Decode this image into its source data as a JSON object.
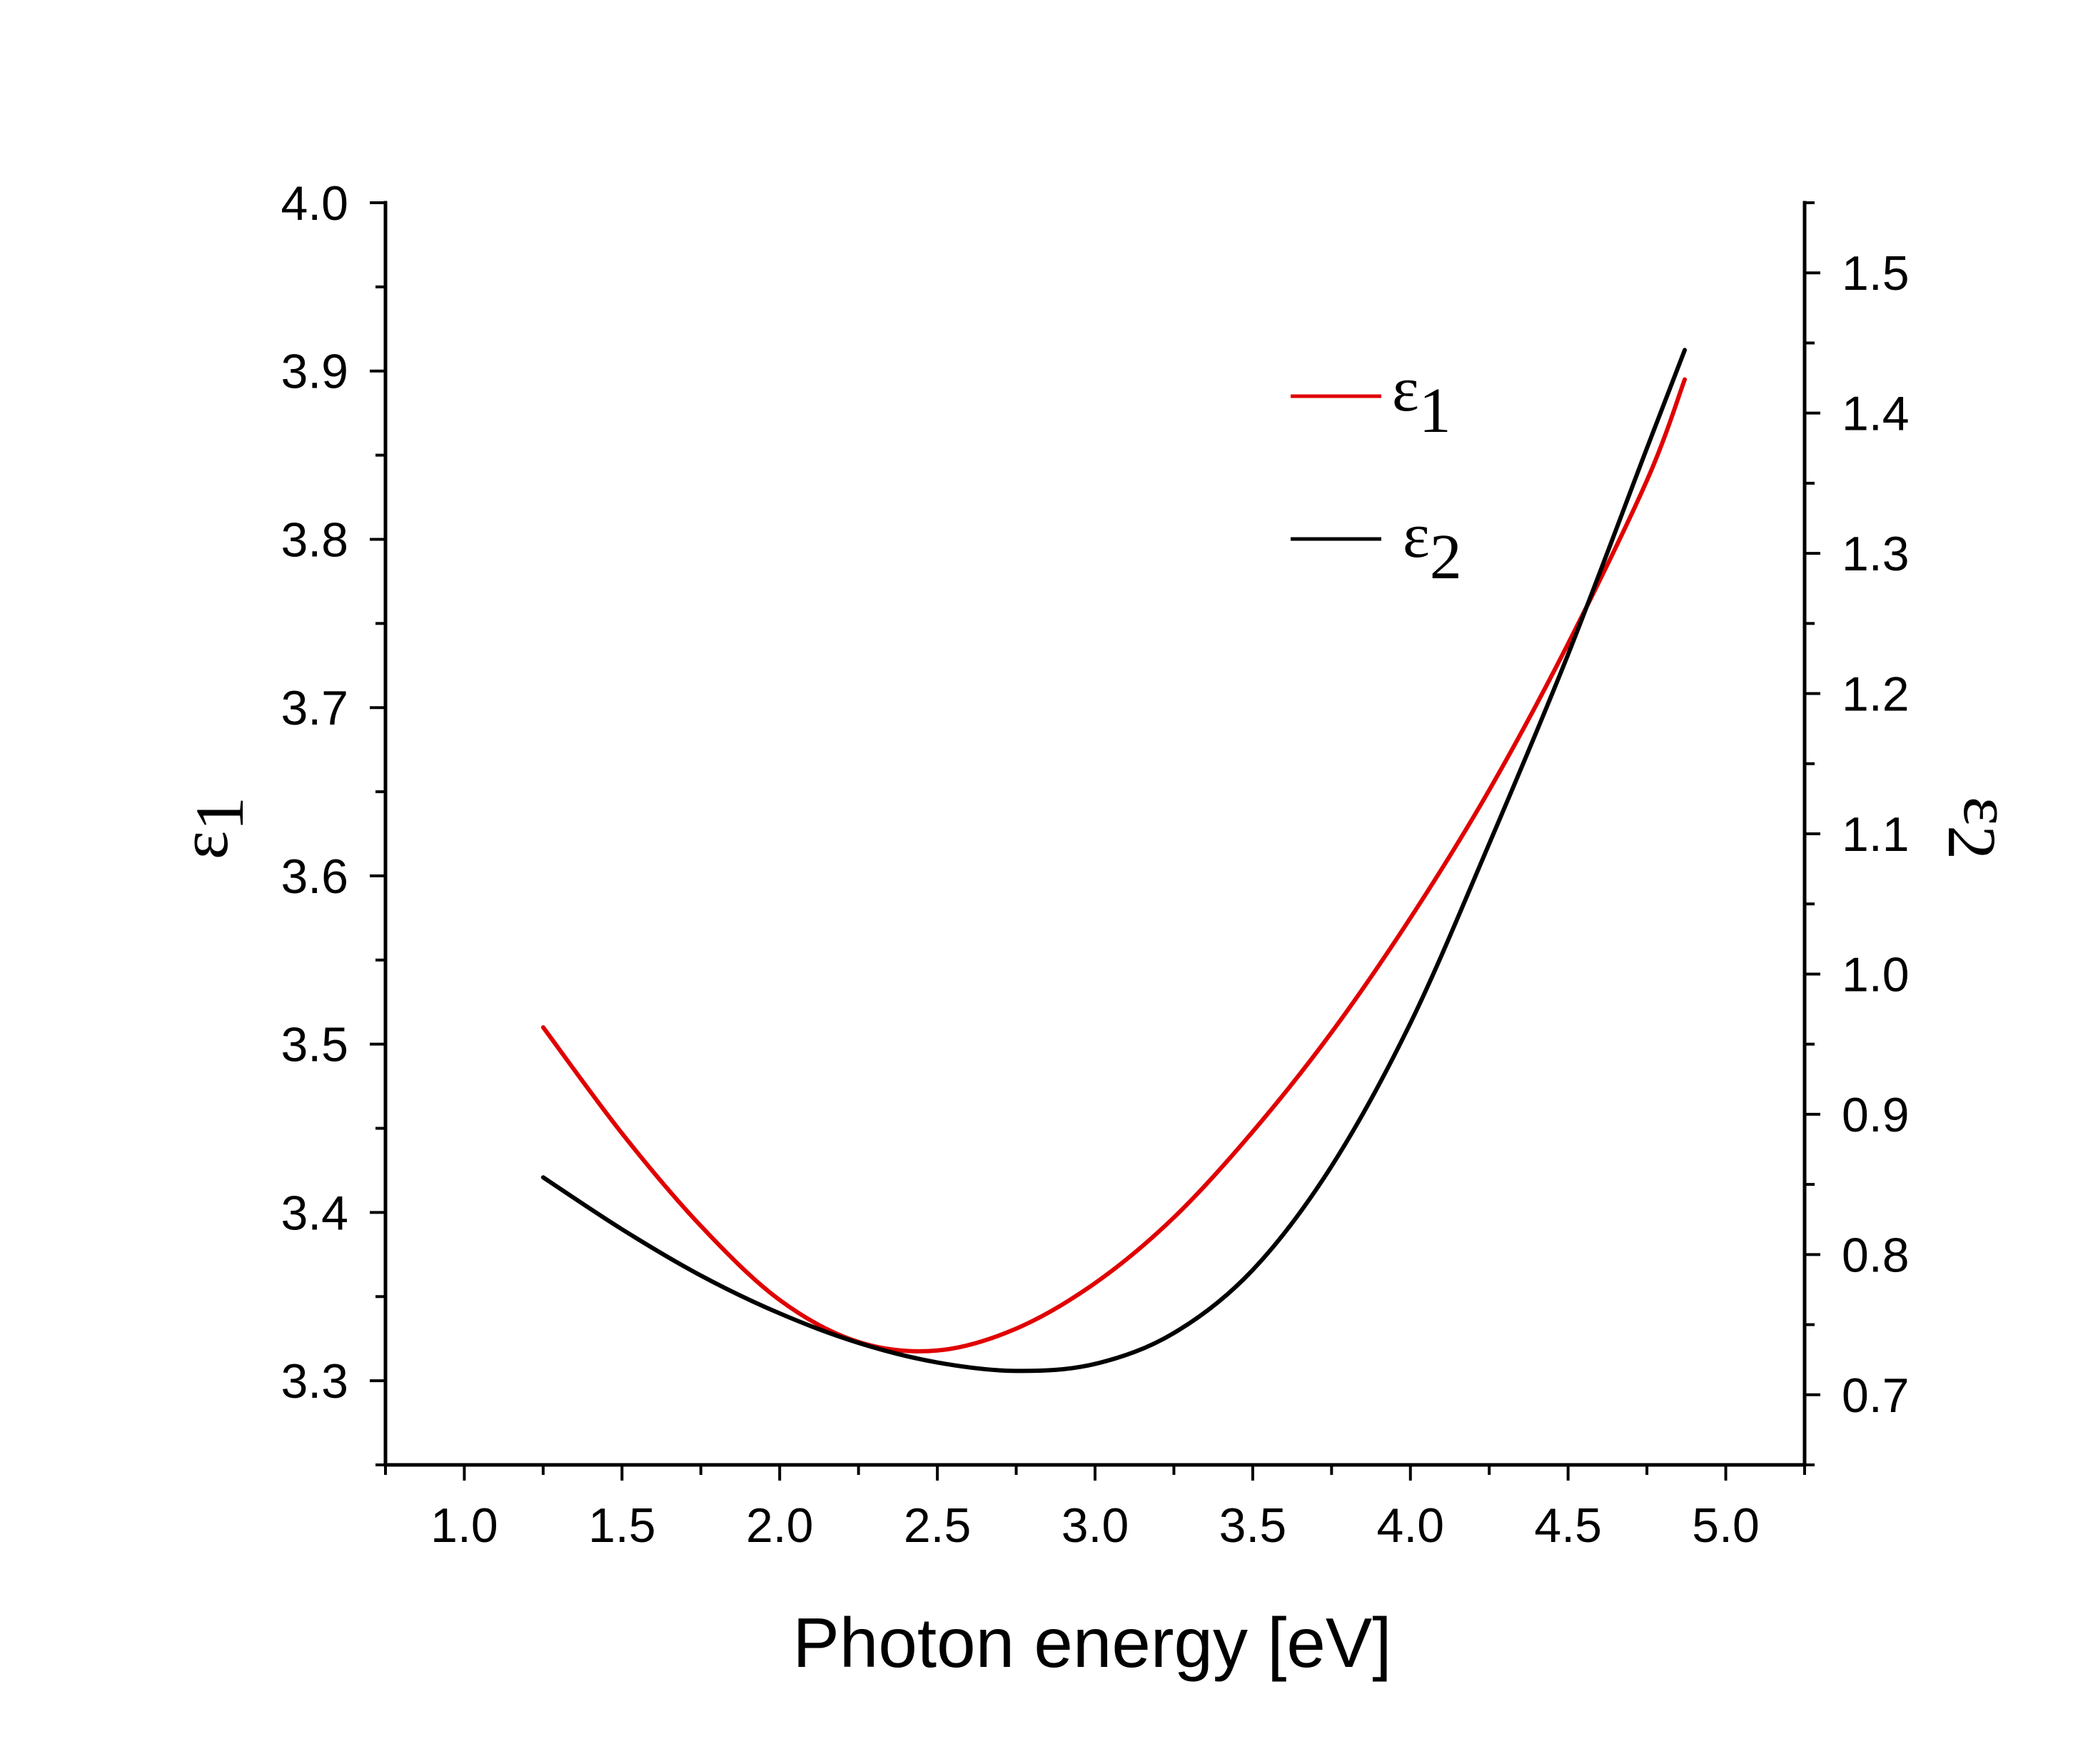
{
  "chart_data": {
    "type": "line",
    "title": "",
    "xlabel": "Photon energy [eV]",
    "ylabel_left": {
      "symbol": "ε",
      "subscript": "1"
    },
    "ylabel_right": {
      "symbol": "ε",
      "subscript": "2"
    },
    "xlim": [
      0.75,
      5.25
    ],
    "ylim_left": [
      3.25,
      4.0
    ],
    "ylim_right": [
      0.65,
      1.55
    ],
    "x_ticks": [
      "1.0",
      "1.5",
      "2.0",
      "2.5",
      "3.0",
      "3.5",
      "4.0",
      "4.5",
      "5.0"
    ],
    "y_left_ticks": [
      "3.3",
      "3.4",
      "3.5",
      "3.6",
      "3.7",
      "3.8",
      "3.9",
      "4.0"
    ],
    "y_right_ticks": [
      "0.7",
      "0.8",
      "0.9",
      "1.0",
      "1.1",
      "1.2",
      "1.3",
      "1.4",
      "1.5"
    ],
    "grid": false,
    "legend_position": "top-right",
    "series": [
      {
        "name": "ε1",
        "legend_symbol": "ε",
        "legend_subscript": "1",
        "axis": "left",
        "color": "#e00000",
        "x": [
          1.25,
          1.5,
          1.75,
          2.0,
          2.25,
          2.5,
          2.75,
          3.0,
          3.25,
          3.5,
          3.75,
          4.0,
          4.25,
          4.5,
          4.75,
          4.87
        ],
        "y": [
          3.51,
          3.447,
          3.392,
          3.348,
          3.323,
          3.318,
          3.331,
          3.358,
          3.397,
          3.448,
          3.507,
          3.575,
          3.651,
          3.738,
          3.835,
          3.895
        ]
      },
      {
        "name": "ε2",
        "legend_symbol": "ε",
        "legend_subscript": "2",
        "axis": "right",
        "color": "#000000",
        "x": [
          1.25,
          1.5,
          1.75,
          2.0,
          2.25,
          2.5,
          2.75,
          3.0,
          3.25,
          3.5,
          3.75,
          4.0,
          4.25,
          4.5,
          4.75,
          4.87
        ],
        "y": [
          0.855,
          0.818,
          0.785,
          0.758,
          0.737,
          0.723,
          0.717,
          0.722,
          0.744,
          0.789,
          0.863,
          0.965,
          1.093,
          1.228,
          1.375,
          1.445
        ]
      }
    ]
  }
}
